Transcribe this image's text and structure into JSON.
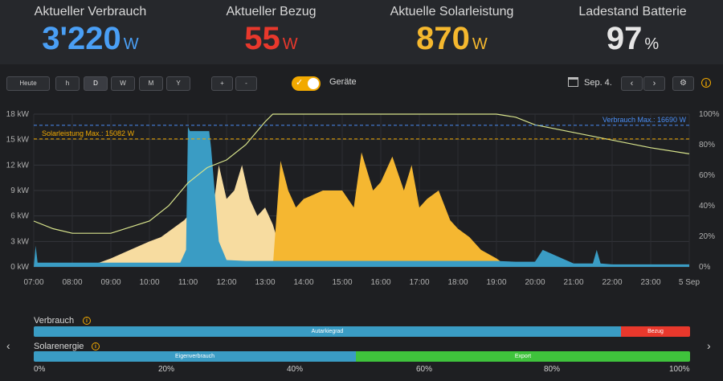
{
  "stats": [
    {
      "label": "Aktueller Verbrauch",
      "value": "3'220",
      "unit": "W",
      "color": "#4a9ff5"
    },
    {
      "label": "Aktueller Bezug",
      "value": "55",
      "unit": "W",
      "color": "#e8382c"
    },
    {
      "label": "Aktuelle Solarleistung",
      "value": "870",
      "unit": "W",
      "color": "#f5b82e"
    },
    {
      "label": "Ladestand Batterie",
      "value": "97",
      "unit": "%",
      "color": "#e6e6e6"
    }
  ],
  "toolbar": {
    "range_buttons": [
      "Heute",
      "h",
      "D",
      "W",
      "M",
      "Y"
    ],
    "active_range": "D",
    "zoom_in": "+",
    "zoom_out": "-",
    "devices_label": "Geräte",
    "date": "Sep. 4.",
    "prev": "‹",
    "next": "›",
    "settings_icon": "gear-icon",
    "info_icon": "info-icon"
  },
  "chart_data": {
    "type": "area",
    "y_left_ticks": [
      "0 kW",
      "3 kW",
      "6 kW",
      "9 kW",
      "12 kW",
      "15 kW",
      "18 kW"
    ],
    "y_right_ticks": [
      "0%",
      "20%",
      "40%",
      "60%",
      "80%",
      "100%"
    ],
    "x_ticks": [
      "07:00",
      "08:00",
      "09:00",
      "10:00",
      "11:00",
      "12:00",
      "13:00",
      "14:00",
      "15:00",
      "16:00",
      "17:00",
      "18:00",
      "19:00",
      "20:00",
      "21:00",
      "22:00",
      "23:00",
      "5 Sep"
    ],
    "ylim_kw": [
      0,
      18
    ],
    "ylim_pct": [
      0,
      100
    ],
    "annotations": [
      {
        "text": "Verbrauch Max.: 16690 W",
        "value_kw": 16.69,
        "color": "#4a8ef5"
      },
      {
        "text": "Solarleistung Max.: 15082 W",
        "value_kw": 15.08,
        "color": "#f2a900"
      }
    ],
    "series": [
      {
        "key": "solar_yellow",
        "color": "#f5b731",
        "hours": [
          7,
          8,
          9,
          10,
          10.8,
          11,
          11.5,
          11.8,
          12,
          12.3,
          12.5,
          12.8,
          13,
          13.2,
          13.4,
          13.6,
          13.8,
          14,
          14.5,
          15,
          15.3,
          15.5,
          15.8,
          16,
          16.3,
          16.6,
          16.8,
          17,
          17.2,
          17.5,
          17.8,
          18,
          18.3,
          18.6,
          19,
          19.3
        ],
        "values_kw": [
          0,
          0,
          0,
          0,
          0,
          0,
          0,
          0,
          0,
          0,
          0,
          0,
          0,
          0,
          12.5,
          9,
          7,
          8,
          9,
          9,
          7,
          13.5,
          9,
          10,
          13,
          9,
          12,
          7,
          8,
          9,
          5.5,
          4.5,
          3.5,
          2,
          1,
          0
        ]
      },
      {
        "key": "solar_light",
        "color": "#f7dca0",
        "hours": [
          7,
          8,
          8.7,
          9,
          9.5,
          10,
          10.3,
          10.6,
          10.9,
          11,
          11.6,
          11.8,
          12,
          12.2,
          12.4,
          12.6,
          12.8,
          13,
          13.2,
          13.4,
          13.6
        ],
        "values_kw": [
          0,
          0,
          0.5,
          1,
          2,
          3,
          3.5,
          4.5,
          5.5,
          6,
          5,
          12,
          8,
          9,
          12,
          8,
          6,
          7,
          5,
          2,
          0
        ]
      },
      {
        "key": "verbrauch_blue",
        "color": "#3a9cc4",
        "hours": [
          7,
          7.05,
          7.1,
          8,
          9,
          10,
          10.8,
          10.95,
          11,
          11.05,
          11.55,
          11.6,
          11.8,
          12,
          12.5,
          13,
          13.5,
          14,
          15,
          16,
          17,
          18,
          19,
          19.5,
          20,
          20.2,
          21,
          21.5,
          21.6,
          21.7,
          22,
          23,
          24
        ],
        "values_kw": [
          0,
          2.5,
          0.5,
          0.5,
          0.5,
          0.5,
          0.5,
          2,
          16.5,
          16,
          16,
          14,
          3,
          0.8,
          0.7,
          0.7,
          0.7,
          0.7,
          0.7,
          0.7,
          0.7,
          0.7,
          0.7,
          0.6,
          0.6,
          2,
          0.4,
          0.4,
          2,
          0.4,
          0.3,
          0.3,
          0.3
        ]
      },
      {
        "key": "battery_pct",
        "color": "#d8e48c",
        "hours": [
          7,
          7.5,
          8,
          9,
          10,
          10.5,
          11,
          11.5,
          12,
          12.5,
          13,
          13.2,
          13.5,
          14,
          16,
          18,
          19,
          19.5,
          20,
          21,
          22,
          23,
          24
        ],
        "values_pct": [
          30,
          25,
          22,
          22,
          30,
          40,
          55,
          65,
          70,
          80,
          95,
          100,
          100,
          100,
          100,
          100,
          100,
          98,
          93,
          88,
          83,
          78,
          74
        ]
      }
    ]
  },
  "verbrauch": {
    "label": "Verbrauch",
    "segments": [
      {
        "label": "Autarkiegrad",
        "value_pct": 89,
        "color": "#3a9cc4"
      },
      {
        "label": "Bezug",
        "value_pct": 11,
        "color": "#e8382c"
      }
    ]
  },
  "solarenergie": {
    "label": "Solarenergie",
    "segments": [
      {
        "label": "Eigenverbrauch",
        "value_pct": 49,
        "color": "#3a9cc4"
      },
      {
        "label": "Export",
        "value_pct": 51,
        "color": "#3fc33c"
      }
    ]
  },
  "axis_pct": [
    "0%",
    "20%",
    "40%",
    "60%",
    "80%",
    "100%"
  ],
  "nav": {
    "left": "‹",
    "right": "›"
  }
}
